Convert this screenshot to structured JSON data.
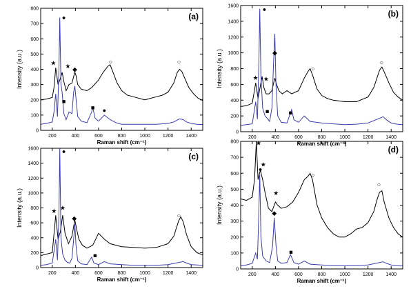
{
  "chart_data": [
    {
      "panel": "(a)",
      "type": "line",
      "xlabel": "Raman shift (cm⁻¹)",
      "ylabel": "Intensity (a.u.)",
      "xlim": [
        100,
        1500
      ],
      "ylim": [
        0,
        800
      ],
      "xticks": [
        200,
        400,
        600,
        800,
        1000,
        1200,
        1400
      ],
      "yticks": [
        0,
        100,
        200,
        300,
        400,
        500,
        600,
        700,
        800
      ],
      "series": [
        {
          "color": "#000000",
          "x": [
            100,
            150,
            200,
            215,
            230,
            250,
            270,
            285,
            300,
            320,
            345,
            370,
            395,
            405,
            420,
            450,
            500,
            540,
            600,
            640,
            680,
            700,
            720,
            760,
            800,
            850,
            900,
            1000,
            1050,
            1100,
            1150,
            1200,
            1250,
            1280,
            1300,
            1320,
            1340,
            1380,
            1420,
            1460,
            1500
          ],
          "y": [
            200,
            205,
            215,
            280,
            410,
            300,
            340,
            380,
            320,
            260,
            300,
            310,
            380,
            360,
            300,
            270,
            260,
            280,
            330,
            380,
            420,
            430,
            390,
            310,
            260,
            230,
            220,
            200,
            210,
            220,
            230,
            250,
            310,
            380,
            400,
            385,
            350,
            280,
            240,
            210,
            195
          ]
        },
        {
          "color": "#3b3bb0",
          "x": [
            100,
            150,
            200,
            215,
            230,
            245,
            258,
            265,
            275,
            285,
            300,
            320,
            345,
            370,
            385,
            395,
            405,
            420,
            450,
            500,
            540,
            550,
            570,
            600,
            650,
            700,
            750,
            800,
            900,
            1000,
            1100,
            1200,
            1250,
            1300,
            1330,
            1360,
            1400,
            1450,
            1500
          ],
          "y": [
            40,
            45,
            55,
            120,
            240,
            90,
            400,
            740,
            300,
            250,
            110,
            70,
            120,
            110,
            250,
            290,
            210,
            90,
            60,
            50,
            120,
            150,
            80,
            60,
            100,
            70,
            50,
            40,
            40,
            40,
            40,
            45,
            55,
            75,
            70,
            55,
            45,
            40,
            38
          ]
        }
      ],
      "markers": [
        {
          "symbol": "●",
          "x": 300,
          "y": 740
        },
        {
          "symbol": "★",
          "x": 210,
          "y": 440
        },
        {
          "symbol": "★",
          "x": 335,
          "y": 420
        },
        {
          "symbol": "◆",
          "x": 395,
          "y": 400
        },
        {
          "symbol": "○",
          "x": 705,
          "y": 450
        },
        {
          "symbol": "○",
          "x": 1295,
          "y": 450
        },
        {
          "symbol": "■",
          "x": 300,
          "y": 190
        },
        {
          "symbol": "■",
          "x": 550,
          "y": 150
        },
        {
          "symbol": "●",
          "x": 650,
          "y": 130
        }
      ]
    },
    {
      "panel": "(b)",
      "type": "line",
      "xlabel": "Raman shift (cm⁻¹)",
      "ylabel": "Intensity (a.u.)",
      "xlim": [
        100,
        1500
      ],
      "ylim": [
        0,
        1600
      ],
      "xticks": [
        200,
        400,
        600,
        800,
        1000,
        1200,
        1400
      ],
      "yticks": [
        0,
        200,
        400,
        600,
        800,
        1000,
        1200,
        1400,
        1600
      ],
      "series": [
        {
          "color": "#000000",
          "x": [
            100,
            150,
            200,
            230,
            250,
            270,
            285,
            300,
            320,
            345,
            370,
            395,
            410,
            430,
            460,
            500,
            540,
            600,
            650,
            680,
            700,
            720,
            760,
            800,
            850,
            900,
            1000,
            1100,
            1200,
            1250,
            1300,
            1320,
            1340,
            1380,
            1420,
            1460,
            1500
          ],
          "y": [
            320,
            330,
            360,
            620,
            420,
            580,
            700,
            560,
            480,
            480,
            520,
            680,
            600,
            520,
            480,
            520,
            480,
            520,
            680,
            760,
            800,
            720,
            540,
            460,
            420,
            400,
            380,
            380,
            440,
            560,
            780,
            820,
            760,
            620,
            500,
            440,
            400
          ]
        },
        {
          "color": "#3b3bb0",
          "x": [
            100,
            150,
            200,
            230,
            245,
            258,
            265,
            275,
            290,
            310,
            330,
            350,
            370,
            385,
            395,
            405,
            420,
            450,
            500,
            540,
            560,
            600,
            650,
            700,
            800,
            900,
            1000,
            1100,
            1200,
            1300,
            1330,
            1360,
            1400,
            1450,
            1500
          ],
          "y": [
            80,
            90,
            100,
            380,
            160,
            900,
            1560,
            700,
            300,
            200,
            170,
            130,
            300,
            900,
            1240,
            600,
            200,
            120,
            110,
            280,
            150,
            120,
            200,
            130,
            110,
            100,
            90,
            95,
            110,
            170,
            190,
            150,
            110,
            95,
            90
          ]
        }
      ],
      "markers": [
        {
          "symbol": "●",
          "x": 305,
          "y": 1550
        },
        {
          "symbol": "★",
          "x": 228,
          "y": 680
        },
        {
          "symbol": "★",
          "x": 320,
          "y": 670
        },
        {
          "symbol": "◆",
          "x": 395,
          "y": 1000
        },
        {
          "symbol": "○",
          "x": 725,
          "y": 800
        },
        {
          "symbol": "○",
          "x": 1318,
          "y": 880
        },
        {
          "symbol": "■",
          "x": 330,
          "y": 260
        },
        {
          "symbol": "■",
          "x": 530,
          "y": 240
        }
      ]
    },
    {
      "panel": "(c)",
      "type": "line",
      "xlabel": "Raman shift (cm⁻¹)",
      "ylabel": "Intensity (a.u.)",
      "xlim": [
        100,
        1500
      ],
      "ylim": [
        0,
        1600
      ],
      "xticks": [
        200,
        400,
        600,
        800,
        1000,
        1200,
        1400
      ],
      "yticks": [
        0,
        200,
        400,
        600,
        800,
        1000,
        1200,
        1400,
        1600
      ],
      "series": [
        {
          "color": "#000000",
          "x": [
            100,
            150,
            200,
            230,
            250,
            270,
            290,
            310,
            340,
            370,
            395,
            410,
            430,
            460,
            500,
            550,
            600,
            650,
            700,
            750,
            800,
            900,
            1000,
            1100,
            1200,
            1250,
            1290,
            1310,
            1330,
            1360,
            1400,
            1450,
            1500
          ],
          "y": [
            160,
            180,
            200,
            700,
            380,
            480,
            700,
            460,
            320,
            420,
            640,
            520,
            380,
            300,
            260,
            300,
            460,
            380,
            320,
            300,
            280,
            270,
            260,
            270,
            320,
            420,
            620,
            680,
            620,
            440,
            280,
            200,
            170
          ]
        },
        {
          "color": "#3b3bb0",
          "x": [
            100,
            150,
            200,
            230,
            245,
            258,
            265,
            275,
            290,
            310,
            330,
            350,
            370,
            385,
            395,
            405,
            420,
            450,
            500,
            540,
            560,
            600,
            650,
            700,
            800,
            900,
            1000,
            1100,
            1200,
            1300,
            1330,
            1360,
            1400,
            1450,
            1500
          ],
          "y": [
            30,
            40,
            60,
            380,
            100,
            700,
            1600,
            400,
            180,
            100,
            70,
            60,
            120,
            380,
            580,
            300,
            90,
            50,
            40,
            140,
            60,
            40,
            80,
            50,
            40,
            30,
            30,
            30,
            40,
            70,
            80,
            60,
            40,
            35,
            30
          ]
        }
      ],
      "markers": [
        {
          "symbol": "●",
          "x": 300,
          "y": 1560
        },
        {
          "symbol": "★",
          "x": 215,
          "y": 760
        },
        {
          "symbol": "★",
          "x": 290,
          "y": 800
        },
        {
          "symbol": "◆",
          "x": 390,
          "y": 660
        },
        {
          "symbol": "○",
          "x": 1295,
          "y": 700
        },
        {
          "symbol": "■",
          "x": 570,
          "y": 160
        }
      ]
    },
    {
      "panel": "(d)",
      "type": "line",
      "xlabel": "Raman shift (cm⁻¹)",
      "ylabel": "Intensity (a.u.)",
      "xlim": [
        100,
        1500
      ],
      "ylim": [
        0,
        800
      ],
      "xticks": [
        200,
        400,
        600,
        800,
        1000,
        1200,
        1400
      ],
      "yticks": [
        0,
        100,
        200,
        300,
        400,
        500,
        600,
        700,
        800
      ],
      "series": [
        {
          "color": "#000000",
          "x": [
            100,
            150,
            200,
            220,
            235,
            250,
            270,
            290,
            310,
            340,
            370,
            400,
            420,
            450,
            500,
            550,
            600,
            650,
            680,
            700,
            720,
            760,
            800,
            850,
            900,
            950,
            1000,
            1050,
            1100,
            1150,
            1200,
            1250,
            1280,
            1300,
            1320,
            1340,
            1380,
            1420,
            1460,
            1500
          ],
          "y": [
            440,
            430,
            450,
            560,
            800,
            560,
            620,
            560,
            480,
            380,
            360,
            420,
            400,
            380,
            390,
            420,
            480,
            560,
            580,
            600,
            560,
            400,
            320,
            260,
            220,
            200,
            200,
            220,
            250,
            260,
            290,
            360,
            440,
            480,
            490,
            420,
            320,
            260,
            220,
            200
          ]
        },
        {
          "color": "#3b3bb0",
          "x": [
            100,
            150,
            200,
            230,
            245,
            255,
            265,
            275,
            290,
            320,
            350,
            375,
            390,
            405,
            420,
            450,
            500,
            530,
            560,
            600,
            650,
            700,
            800,
            900,
            1000,
            1100,
            1200,
            1300,
            1330,
            1360,
            1400,
            1450,
            1500
          ],
          "y": [
            20,
            25,
            35,
            100,
            60,
            300,
            590,
            200,
            80,
            50,
            40,
            140,
            320,
            150,
            50,
            35,
            40,
            90,
            40,
            30,
            50,
            30,
            25,
            20,
            20,
            20,
            25,
            40,
            45,
            35,
            25,
            20,
            18
          ]
        }
      ],
      "markers": [
        {
          "symbol": "●",
          "x": 270,
          "y": 625
        },
        {
          "symbol": "★",
          "x": 255,
          "y": 790
        },
        {
          "symbol": "★",
          "x": 295,
          "y": 655
        },
        {
          "symbol": "★",
          "x": 405,
          "y": 475
        },
        {
          "symbol": "◆",
          "x": 390,
          "y": 350
        },
        {
          "symbol": "○",
          "x": 725,
          "y": 590
        },
        {
          "symbol": "○",
          "x": 1295,
          "y": 530
        },
        {
          "symbol": "■",
          "x": 535,
          "y": 105
        }
      ]
    }
  ]
}
